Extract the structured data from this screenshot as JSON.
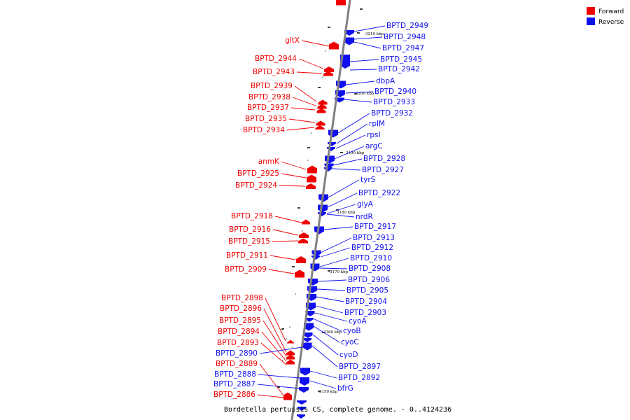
{
  "colors": {
    "forward": "#ee0000",
    "reverse": "#1010ee",
    "backbone": "#808080"
  },
  "legend": [
    {
      "label": "Forward",
      "color": "#ee0000"
    },
    {
      "label": "Reverse",
      "color": "#1010ee"
    }
  ],
  "caption": "Bordetella pertussis CS, complete genome. - 0..4124236",
  "scale_labels": [
    "3210 kbp",
    "3200 kbp",
    "3190 kbp",
    "3180 kbp",
    "3170 kbp",
    "3160 kbp",
    "3150 kbp"
  ],
  "forward_genes": [
    "gltX",
    "BPTD_2944",
    "BPTD_2943",
    "BPTD_2939",
    "BPTD_2938",
    "BPTD_2937",
    "BPTD_2935",
    "BPTD_2934",
    "anmK",
    "BPTD_2925",
    "BPTD_2924",
    "BPTD_2918",
    "BPTD_2916",
    "BPTD_2915",
    "BPTD_2911",
    "BPTD_2909",
    "BPTD_2898",
    "BPTD_2896",
    "BPTD_2895",
    "BPTD_2894",
    "BPTD_2893",
    "BPTD_2889",
    "BPTD_2886"
  ],
  "left_reverse_genes": [
    "BPTD_2890",
    "BPTD_2888",
    "BPTD_2887"
  ],
  "reverse_genes": [
    "BPTD_2949",
    "BPTD_2948",
    "BPTD_2947",
    "BPTD_2945",
    "BPTD_2942",
    "dbpA",
    "BPTD_2940",
    "BPTD_2933",
    "BPTD_2932",
    "rplM",
    "rpsI",
    "argC",
    "BPTD_2928",
    "BPTD_2927",
    "tyrS",
    "BPTD_2922",
    "glyA",
    "nrdR",
    "BPTD_2917",
    "BPTD_2913",
    "BPTD_2912",
    "BPTD_2910",
    "BPTD_2908",
    "BPTD_2906",
    "BPTD_2905",
    "BPTD_2904",
    "BPTD_2903",
    "cyoA",
    "cyoB",
    "cyoC",
    "cyoD",
    "BPTD_2897",
    "BPTD_2892",
    "bfrG"
  ]
}
